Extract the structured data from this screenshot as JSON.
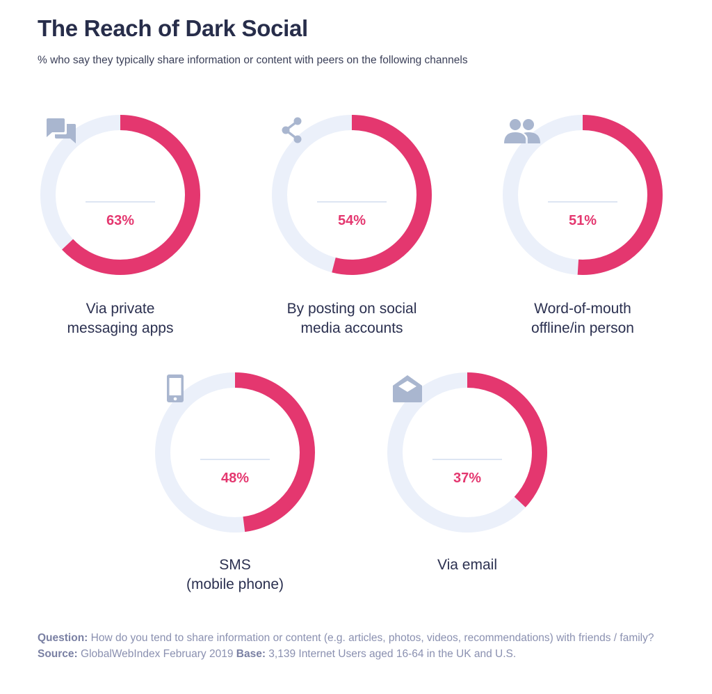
{
  "header": {
    "title": "The Reach of Dark Social",
    "subtitle": "% who say they typically share information or content with peers on the following channels"
  },
  "colors": {
    "accent": "#e4376f",
    "track": "#ebf0fa",
    "icon": "#a9b6cf",
    "title": "#272d4a"
  },
  "chart_data": {
    "type": "pie",
    "subtype": "donut-progress",
    "title": "The Reach of Dark Social",
    "subtitle": "% who say they typically share information or content with peers on the following channels",
    "unit": "%",
    "categories": [
      "Via private messaging apps",
      "By posting on social media accounts",
      "Word-of-mouth offline/in person",
      "SMS (mobile phone)",
      "Via email"
    ],
    "values": [
      63,
      54,
      51,
      48,
      37
    ],
    "items": [
      {
        "label": "Via private\nmessaging apps",
        "value": 63,
        "display": "63%",
        "icon": "chat-bubbles-icon"
      },
      {
        "label": "By posting on social\nmedia accounts",
        "value": 54,
        "display": "54%",
        "icon": "share-icon"
      },
      {
        "label": "Word-of-mouth\noffline/in person",
        "value": 51,
        "display": "51%",
        "icon": "people-icon"
      },
      {
        "label": "SMS\n(mobile phone)",
        "value": 48,
        "display": "48%",
        "icon": "mobile-phone-icon"
      },
      {
        "label": "Via email",
        "value": 37,
        "display": "37%",
        "icon": "envelope-open-icon"
      }
    ]
  },
  "footnote": {
    "question_label": "Question:",
    "question_text": " How do you tend to share information or content (e.g. articles, photos, videos, recommendations) with friends / family? ",
    "source_label": "Source:",
    "source_text": " GlobalWebIndex February 2019 ",
    "base_label": "Base:",
    "base_text": " 3,139 Internet Users aged 16-64 in the UK and U.S."
  }
}
